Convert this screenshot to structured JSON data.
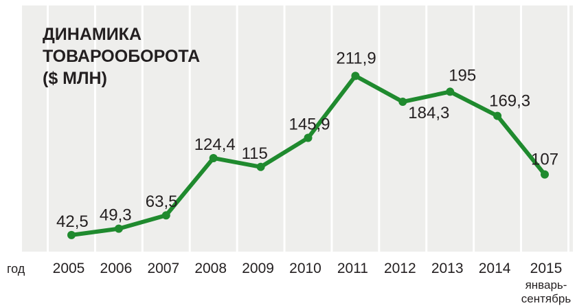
{
  "chart_data": {
    "type": "line",
    "title_lines": [
      "ДИНАМИКА",
      "ТОВАРООБОРОТА",
      "($ МЛН)"
    ],
    "xlabel": "год",
    "ylabel": "",
    "x": [
      "2005",
      "2006",
      "2007",
      "2008",
      "2009",
      "2010",
      "2011",
      "2012",
      "2013",
      "2014",
      "2015"
    ],
    "x_sublabel": {
      "index": 10,
      "lines": [
        "январь-",
        "сентябрь"
      ]
    },
    "series": [
      {
        "values": [
          42.5,
          49.3,
          63.5,
          124.4,
          115,
          145.9,
          211.9,
          184.3,
          195,
          169.3,
          107
        ],
        "labels": [
          "42,5",
          "49,3",
          "63,5",
          "124,4",
          "115",
          "145,9",
          "211,9",
          "184,3",
          "195",
          "169,3",
          "107"
        ]
      }
    ],
    "ylim": [
      0,
      230
    ],
    "grid": true,
    "legend": "none",
    "colors": {
      "line": "#1f8a2e",
      "background": "#eeeeec",
      "grid": "#ffffff",
      "text": "#231f20"
    }
  }
}
